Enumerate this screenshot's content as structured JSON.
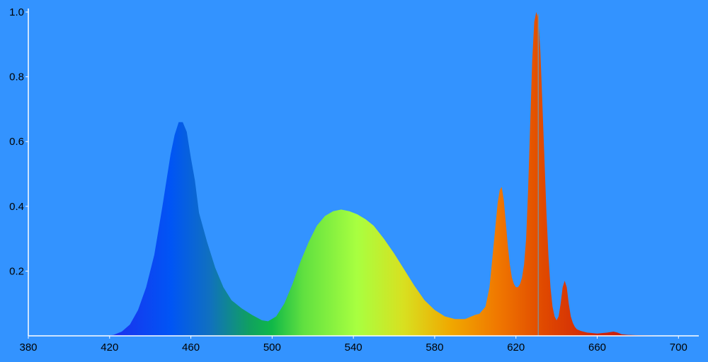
{
  "chart_data": {
    "type": "area",
    "title": "",
    "xlabel": "",
    "ylabel": "",
    "xlim": [
      380,
      710
    ],
    "ylim": [
      0,
      1.0
    ],
    "grid": false,
    "x_ticks": [
      "380",
      "420",
      "460",
      "500",
      "540",
      "580",
      "620",
      "660",
      "700"
    ],
    "y_ticks": [
      "0.2",
      "0.4",
      "0.6",
      "0.8",
      "1.0"
    ],
    "marker_line_x": 631,
    "x": [
      418,
      422,
      426,
      430,
      434,
      438,
      442,
      446,
      448,
      450,
      452,
      454,
      456,
      458,
      460,
      462,
      464,
      468,
      472,
      476,
      480,
      485,
      490,
      495,
      498,
      502,
      506,
      510,
      514,
      518,
      522,
      526,
      530,
      534,
      538,
      542,
      546,
      550,
      555,
      560,
      565,
      570,
      575,
      580,
      585,
      590,
      595,
      600,
      602,
      605,
      607,
      609,
      611,
      612,
      613,
      614,
      615,
      616,
      617,
      618,
      619,
      620,
      621,
      622,
      623,
      624,
      625,
      626,
      627,
      628,
      629,
      630,
      631,
      632,
      633,
      634,
      635,
      636,
      637,
      638,
      639,
      640,
      641,
      642,
      643,
      644,
      645,
      646,
      647,
      648,
      649,
      650,
      652,
      655,
      660,
      665,
      668,
      670,
      672,
      675,
      680,
      690,
      700,
      708
    ],
    "y": [
      0.0,
      0.003,
      0.013,
      0.035,
      0.08,
      0.15,
      0.25,
      0.4,
      0.48,
      0.56,
      0.62,
      0.66,
      0.66,
      0.63,
      0.55,
      0.48,
      0.38,
      0.29,
      0.21,
      0.15,
      0.11,
      0.085,
      0.065,
      0.048,
      0.045,
      0.06,
      0.1,
      0.16,
      0.23,
      0.29,
      0.34,
      0.37,
      0.385,
      0.39,
      0.385,
      0.375,
      0.36,
      0.34,
      0.3,
      0.255,
      0.205,
      0.155,
      0.11,
      0.08,
      0.06,
      0.052,
      0.052,
      0.065,
      0.068,
      0.09,
      0.15,
      0.28,
      0.41,
      0.45,
      0.46,
      0.42,
      0.35,
      0.28,
      0.22,
      0.18,
      0.16,
      0.15,
      0.15,
      0.16,
      0.18,
      0.22,
      0.3,
      0.45,
      0.65,
      0.85,
      0.97,
      1.0,
      0.98,
      0.88,
      0.72,
      0.55,
      0.38,
      0.25,
      0.15,
      0.09,
      0.06,
      0.048,
      0.06,
      0.1,
      0.15,
      0.17,
      0.15,
      0.1,
      0.06,
      0.04,
      0.028,
      0.02,
      0.015,
      0.01,
      0.007,
      0.01,
      0.013,
      0.01,
      0.005,
      0.003,
      0.002,
      0.001,
      0.0,
      0.0
    ]
  }
}
